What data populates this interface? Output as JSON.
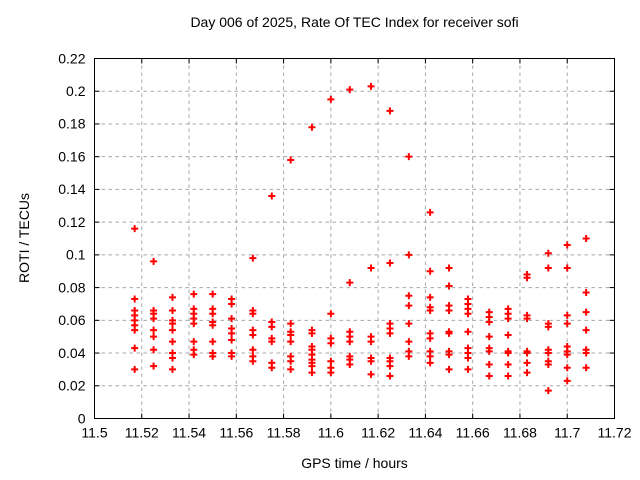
{
  "page": {
    "background": "#ffffff"
  },
  "chart_data": {
    "type": "scatter",
    "title": "Day 006 of 2025, Rate Of TEC Index for receiver sofi",
    "xlabel": "GPS time / hours",
    "ylabel": "ROTI / TECUs",
    "xlim": [
      11.5,
      11.72
    ],
    "ylim": [
      0,
      0.22
    ],
    "xticks": [
      11.5,
      11.52,
      11.54,
      11.56,
      11.58,
      11.6,
      11.62,
      11.64,
      11.66,
      11.68,
      11.7,
      11.72
    ],
    "xtick_labels": [
      "11.5",
      "11.52",
      "11.54",
      "11.56",
      "11.58",
      "11.6",
      "11.62",
      "11.64",
      "11.66",
      "11.68",
      "11.7",
      "11.72"
    ],
    "yticks": [
      0,
      0.02,
      0.04,
      0.06,
      0.08,
      0.1,
      0.12,
      0.14,
      0.16,
      0.18,
      0.2,
      0.22
    ],
    "ytick_labels": [
      "0",
      "0.02",
      "0.04",
      "0.06",
      "0.08",
      "0.1",
      "0.12",
      "0.14",
      "0.16",
      "0.18",
      "0.2",
      "0.22"
    ],
    "grid": true,
    "legend": "none",
    "marker": {
      "shape": "plus",
      "color": "#ff0000",
      "size": 7,
      "stroke_width": 2
    },
    "axis_color": "#000000",
    "grid_color": "#a8a8a8",
    "series": [
      {
        "name": "ROTI",
        "points": [
          [
            11.517,
            0.116
          ],
          [
            11.517,
            0.073
          ],
          [
            11.517,
            0.066
          ],
          [
            11.517,
            0.063
          ],
          [
            11.517,
            0.06
          ],
          [
            11.517,
            0.057
          ],
          [
            11.517,
            0.054
          ],
          [
            11.517,
            0.043
          ],
          [
            11.517,
            0.03
          ],
          [
            11.525,
            0.096
          ],
          [
            11.525,
            0.066
          ],
          [
            11.525,
            0.064
          ],
          [
            11.525,
            0.061
          ],
          [
            11.525,
            0.054
          ],
          [
            11.525,
            0.05
          ],
          [
            11.525,
            0.042
          ],
          [
            11.525,
            0.032
          ],
          [
            11.533,
            0.074
          ],
          [
            11.533,
            0.066
          ],
          [
            11.533,
            0.06
          ],
          [
            11.533,
            0.058
          ],
          [
            11.533,
            0.054
          ],
          [
            11.533,
            0.047
          ],
          [
            11.533,
            0.04
          ],
          [
            11.533,
            0.037
          ],
          [
            11.533,
            0.03
          ],
          [
            11.542,
            0.076
          ],
          [
            11.542,
            0.067
          ],
          [
            11.542,
            0.064
          ],
          [
            11.542,
            0.061
          ],
          [
            11.542,
            0.058
          ],
          [
            11.542,
            0.047
          ],
          [
            11.542,
            0.042
          ],
          [
            11.542,
            0.039
          ],
          [
            11.55,
            0.076
          ],
          [
            11.55,
            0.067
          ],
          [
            11.55,
            0.064
          ],
          [
            11.55,
            0.059
          ],
          [
            11.55,
            0.057
          ],
          [
            11.55,
            0.047
          ],
          [
            11.55,
            0.04
          ],
          [
            11.55,
            0.038
          ],
          [
            11.558,
            0.073
          ],
          [
            11.558,
            0.07
          ],
          [
            11.558,
            0.061
          ],
          [
            11.558,
            0.055
          ],
          [
            11.558,
            0.052
          ],
          [
            11.558,
            0.048
          ],
          [
            11.558,
            0.04
          ],
          [
            11.558,
            0.038
          ],
          [
            11.567,
            0.098
          ],
          [
            11.567,
            0.066
          ],
          [
            11.567,
            0.064
          ],
          [
            11.567,
            0.054
          ],
          [
            11.567,
            0.051
          ],
          [
            11.567,
            0.042
          ],
          [
            11.567,
            0.038
          ],
          [
            11.567,
            0.035
          ],
          [
            11.575,
            0.136
          ],
          [
            11.575,
            0.059
          ],
          [
            11.575,
            0.056
          ],
          [
            11.575,
            0.049
          ],
          [
            11.575,
            0.047
          ],
          [
            11.575,
            0.034
          ],
          [
            11.575,
            0.031
          ],
          [
            11.583,
            0.158
          ],
          [
            11.583,
            0.058
          ],
          [
            11.583,
            0.053
          ],
          [
            11.583,
            0.051
          ],
          [
            11.583,
            0.047
          ],
          [
            11.583,
            0.038
          ],
          [
            11.583,
            0.035
          ],
          [
            11.583,
            0.03
          ],
          [
            11.592,
            0.178
          ],
          [
            11.592,
            0.054
          ],
          [
            11.592,
            0.052
          ],
          [
            11.592,
            0.044
          ],
          [
            11.592,
            0.042
          ],
          [
            11.592,
            0.039
          ],
          [
            11.592,
            0.036
          ],
          [
            11.592,
            0.034
          ],
          [
            11.592,
            0.032
          ],
          [
            11.592,
            0.028
          ],
          [
            11.6,
            0.195
          ],
          [
            11.6,
            0.064
          ],
          [
            11.6,
            0.049
          ],
          [
            11.6,
            0.046
          ],
          [
            11.6,
            0.035
          ],
          [
            11.6,
            0.031
          ],
          [
            11.6,
            0.028
          ],
          [
            11.608,
            0.201
          ],
          [
            11.608,
            0.083
          ],
          [
            11.608,
            0.053
          ],
          [
            11.608,
            0.05
          ],
          [
            11.608,
            0.047
          ],
          [
            11.608,
            0.038
          ],
          [
            11.608,
            0.036
          ],
          [
            11.608,
            0.033
          ],
          [
            11.617,
            0.203
          ],
          [
            11.617,
            0.092
          ],
          [
            11.617,
            0.05
          ],
          [
            11.617,
            0.047
          ],
          [
            11.617,
            0.037
          ],
          [
            11.617,
            0.035
          ],
          [
            11.617,
            0.027
          ],
          [
            11.625,
            0.188
          ],
          [
            11.625,
            0.095
          ],
          [
            11.625,
            0.058
          ],
          [
            11.625,
            0.055
          ],
          [
            11.625,
            0.052
          ],
          [
            11.625,
            0.037
          ],
          [
            11.625,
            0.035
          ],
          [
            11.625,
            0.032
          ],
          [
            11.625,
            0.026
          ],
          [
            11.633,
            0.16
          ],
          [
            11.633,
            0.1
          ],
          [
            11.633,
            0.075
          ],
          [
            11.633,
            0.069
          ],
          [
            11.633,
            0.058
          ],
          [
            11.633,
            0.047
          ],
          [
            11.633,
            0.041
          ],
          [
            11.633,
            0.038
          ],
          [
            11.642,
            0.126
          ],
          [
            11.642,
            0.09
          ],
          [
            11.642,
            0.074
          ],
          [
            11.642,
            0.068
          ],
          [
            11.642,
            0.066
          ],
          [
            11.642,
            0.052
          ],
          [
            11.642,
            0.049
          ],
          [
            11.642,
            0.041
          ],
          [
            11.642,
            0.038
          ],
          [
            11.642,
            0.034
          ],
          [
            11.65,
            0.092
          ],
          [
            11.65,
            0.081
          ],
          [
            11.65,
            0.069
          ],
          [
            11.65,
            0.066
          ],
          [
            11.65,
            0.053
          ],
          [
            11.65,
            0.052
          ],
          [
            11.65,
            0.041
          ],
          [
            11.65,
            0.039
          ],
          [
            11.65,
            0.03
          ],
          [
            11.658,
            0.073
          ],
          [
            11.658,
            0.07
          ],
          [
            11.658,
            0.067
          ],
          [
            11.658,
            0.064
          ],
          [
            11.658,
            0.053
          ],
          [
            11.658,
            0.043
          ],
          [
            11.658,
            0.04
          ],
          [
            11.658,
            0.037
          ],
          [
            11.658,
            0.03
          ],
          [
            11.667,
            0.065
          ],
          [
            11.667,
            0.062
          ],
          [
            11.667,
            0.059
          ],
          [
            11.667,
            0.05
          ],
          [
            11.667,
            0.043
          ],
          [
            11.667,
            0.041
          ],
          [
            11.667,
            0.033
          ],
          [
            11.667,
            0.026
          ],
          [
            11.675,
            0.067
          ],
          [
            11.675,
            0.064
          ],
          [
            11.675,
            0.061
          ],
          [
            11.675,
            0.051
          ],
          [
            11.675,
            0.041
          ],
          [
            11.675,
            0.04
          ],
          [
            11.675,
            0.033
          ],
          [
            11.675,
            0.026
          ],
          [
            11.683,
            0.088
          ],
          [
            11.683,
            0.086
          ],
          [
            11.683,
            0.063
          ],
          [
            11.683,
            0.061
          ],
          [
            11.683,
            0.041
          ],
          [
            11.683,
            0.04
          ],
          [
            11.683,
            0.034
          ],
          [
            11.683,
            0.028
          ],
          [
            11.692,
            0.101
          ],
          [
            11.692,
            0.092
          ],
          [
            11.692,
            0.058
          ],
          [
            11.692,
            0.056
          ],
          [
            11.692,
            0.042
          ],
          [
            11.692,
            0.04
          ],
          [
            11.692,
            0.035
          ],
          [
            11.692,
            0.033
          ],
          [
            11.692,
            0.017
          ],
          [
            11.7,
            0.106
          ],
          [
            11.7,
            0.092
          ],
          [
            11.7,
            0.063
          ],
          [
            11.7,
            0.058
          ],
          [
            11.7,
            0.044
          ],
          [
            11.7,
            0.041
          ],
          [
            11.7,
            0.039
          ],
          [
            11.7,
            0.031
          ],
          [
            11.7,
            0.023
          ],
          [
            11.708,
            0.11
          ],
          [
            11.708,
            0.077
          ],
          [
            11.708,
            0.065
          ],
          [
            11.708,
            0.054
          ],
          [
            11.708,
            0.042
          ],
          [
            11.708,
            0.04
          ],
          [
            11.708,
            0.031
          ]
        ]
      }
    ]
  }
}
